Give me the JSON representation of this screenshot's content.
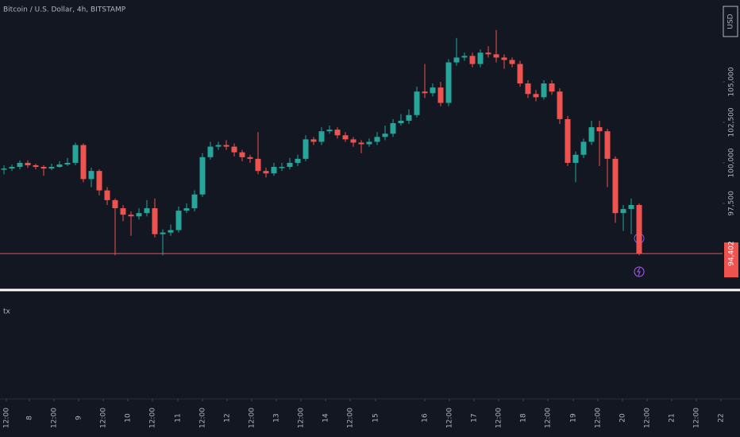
{
  "chart_data": {
    "type": "candlestick",
    "title": "Bitcoin / U.S. Dollar, 4h, BITSTAMP",
    "currency": "USD",
    "indicator_label": "tx",
    "up_color": "#26a69a",
    "down_color": "#ef5350",
    "open": [
      99600,
      99650,
      99750,
      100000,
      99850,
      99750,
      99650,
      99750,
      99900,
      100000,
      101100,
      99000,
      99500,
      98300,
      97700,
      97200,
      96800,
      96700,
      96900,
      97200,
      95600,
      95700,
      95850,
      97050,
      97200,
      98050,
      100350,
      101000,
      101100,
      101000,
      100650,
      100350,
      100250,
      99500,
      99350,
      99750,
      99750,
      100000,
      100250,
      101450,
      101300,
      101950,
      102050,
      101700,
      101450,
      101250,
      101150,
      101300,
      101600,
      101800,
      102450,
      102600,
      102950,
      104400,
      104300,
      104650,
      103700,
      106200,
      106500,
      106600,
      106100,
      106800,
      106700,
      106500,
      106350,
      106100,
      104900,
      104250,
      104050,
      104900,
      104400,
      102700,
      100000,
      100500,
      101300,
      102200,
      101950,
      100250,
      96900,
      97150,
      97400
    ],
    "high": [
      99850,
      99900,
      100150,
      100150,
      99950,
      99850,
      99950,
      100100,
      100300,
      101250,
      101200,
      99700,
      99600,
      98500,
      97800,
      97400,
      97000,
      97200,
      97700,
      97800,
      95900,
      96200,
      97300,
      97500,
      98300,
      100600,
      101300,
      101300,
      101400,
      101200,
      100800,
      100500,
      101900,
      99700,
      100000,
      100000,
      100300,
      100500,
      101700,
      101600,
      102200,
      102300,
      102200,
      101900,
      101600,
      101400,
      101500,
      101900,
      102300,
      102700,
      103000,
      103300,
      104700,
      106100,
      104900,
      105000,
      106400,
      107700,
      106800,
      106800,
      107000,
      107200,
      108200,
      106700,
      106500,
      106300,
      105100,
      104500,
      105100,
      105100,
      104600,
      102900,
      100700,
      101500,
      102600,
      102600,
      102100,
      100400,
      97400,
      97800,
      97500
    ],
    "low": [
      99300,
      99500,
      99600,
      99700,
      99600,
      99200,
      99550,
      99700,
      99800,
      99850,
      98800,
      98500,
      98000,
      97400,
      94300,
      96400,
      95500,
      96500,
      96700,
      95400,
      94300,
      95500,
      95700,
      96900,
      97000,
      97900,
      100200,
      100800,
      100800,
      100400,
      100100,
      100000,
      99300,
      99100,
      99200,
      99500,
      99600,
      99800,
      100100,
      101100,
      101100,
      101800,
      101500,
      101300,
      101000,
      100600,
      101000,
      101100,
      101400,
      101600,
      102300,
      102400,
      102800,
      104000,
      104100,
      103500,
      103500,
      106000,
      106300,
      105900,
      105900,
      106500,
      106200,
      105800,
      105900,
      104700,
      104000,
      103800,
      103900,
      104200,
      102400,
      99800,
      98800,
      100300,
      101100,
      99800,
      98500,
      96300,
      95800,
      95600,
      94300
    ],
    "close": [
      99650,
      99750,
      100000,
      99850,
      99750,
      99650,
      99750,
      99900,
      100000,
      101100,
      99000,
      99500,
      98300,
      97700,
      97200,
      96800,
      96700,
      96900,
      97200,
      95600,
      95700,
      95850,
      97050,
      97200,
      98050,
      100350,
      101000,
      101100,
      101000,
      100650,
      100350,
      100250,
      99500,
      99350,
      99750,
      99750,
      100000,
      100250,
      101450,
      101300,
      101950,
      102050,
      101700,
      101450,
      101250,
      101150,
      101300,
      101600,
      101800,
      102450,
      102600,
      102950,
      104400,
      104300,
      104650,
      103700,
      106200,
      106500,
      106600,
      106100,
      106800,
      106700,
      106500,
      106350,
      106100,
      104900,
      104250,
      104050,
      104900,
      104400,
      102700,
      100000,
      100500,
      101300,
      102200,
      101950,
      100250,
      96900,
      97150,
      97400,
      94402
    ],
    "last_price": {
      "value": 94402,
      "label": "94,402"
    },
    "ylim": [
      92300,
      110050
    ],
    "yticks": [
      {
        "value": 97500,
        "label": "97,500"
      },
      {
        "value": 100000,
        "label": "100,000"
      },
      {
        "value": 102500,
        "label": "102,500"
      },
      {
        "value": 105000,
        "label": "105,000"
      }
    ],
    "xlim": [
      -0.5,
      90.5
    ],
    "xticks": [
      {
        "value": 0.3,
        "label": "12:00"
      },
      {
        "value": 3.2,
        "label": "8"
      },
      {
        "value": 6.3,
        "label": "12:00"
      },
      {
        "value": 9.4,
        "label": "9"
      },
      {
        "value": 12.5,
        "label": "12:00"
      },
      {
        "value": 15.6,
        "label": "10"
      },
      {
        "value": 18.7,
        "label": "12:00"
      },
      {
        "value": 21.9,
        "label": "11"
      },
      {
        "value": 25,
        "label": "12:00"
      },
      {
        "value": 28.1,
        "label": "12"
      },
      {
        "value": 31.2,
        "label": "12:00"
      },
      {
        "value": 34.3,
        "label": "13"
      },
      {
        "value": 37.4,
        "label": "12:00"
      },
      {
        "value": 40.5,
        "label": "14"
      },
      {
        "value": 43.6,
        "label": "12:00"
      },
      {
        "value": 46.8,
        "label": "15"
      },
      {
        "value": 53,
        "label": "16"
      },
      {
        "value": 56.1,
        "label": "12:00"
      },
      {
        "value": 59.2,
        "label": "17"
      },
      {
        "value": 62.3,
        "label": "12:00"
      },
      {
        "value": 65.4,
        "label": "18"
      },
      {
        "value": 68.5,
        "label": "12:00"
      },
      {
        "value": 71.7,
        "label": "19"
      },
      {
        "value": 74.8,
        "label": "12:00"
      },
      {
        "value": 77.9,
        "label": "20"
      },
      {
        "value": 81,
        "label": "12:00"
      },
      {
        "value": 84.1,
        "label": "21"
      },
      {
        "value": 87.2,
        "label": "12:00"
      },
      {
        "value": 90.3,
        "label": "22"
      }
    ]
  }
}
